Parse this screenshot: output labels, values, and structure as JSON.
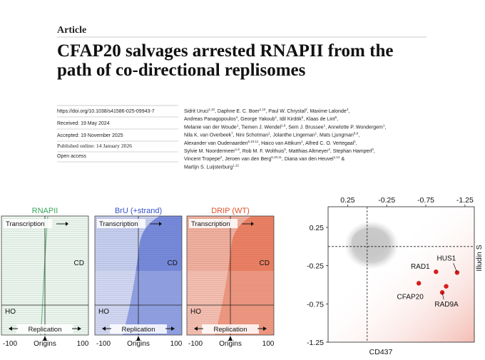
{
  "header": {
    "label": "Article",
    "title_lines": [
      "CFAP20 salvages arrested RNAPII from the",
      "path of co-directional replisomes"
    ]
  },
  "details": [
    "https://doi.org/10.1038/s41586-025-09943-7",
    "Received: 19 May 2024",
    "Accepted: 19 November 2025",
    "Published online: 14 January 2026",
    "Open access"
  ],
  "authors": [
    [
      "Sidrit Uruci",
      "1,10",
      ", Daphne E. C. Boer",
      "1,10",
      ", Paul W. Chrystal",
      "2",
      ", Maxime Lalonde",
      "3",
      ","
    ],
    [
      "Andreas Panagopoulos",
      "4",
      ", George Yakoub",
      "1",
      ", Idil Kirdök",
      "5",
      ", Klaas de Lint",
      "5",
      ","
    ],
    [
      "Melanie van der Woude",
      "1",
      ", Tiemen J. Wendel",
      "1,6",
      ", Sem J. Brussee",
      "1",
      ", Annelotte P. Wondergem",
      "1",
      ","
    ],
    [
      "Nila K. van Overbeek",
      "7",
      ", Nini Schotman",
      "1",
      ", Jolanthe Lingeman",
      "1",
      ", Mats Ljungman",
      "8,9",
      ","
    ],
    [
      "Alexander van Oudenaarden",
      "6,10,11",
      ", Haico van Attikum",
      "1",
      ", Alfred C. O. Vertegaal",
      "1",
      ","
    ],
    [
      "Sylvie M. Noordermeer",
      "1,6",
      ", Rob M. F. Wolthuis",
      "5",
      ", Matthias Altmeyer",
      "4",
      ", Stephan Hamperl",
      "3",
      ","
    ],
    [
      "Vincent Tropepe",
      "2",
      ", Jeroen van den Berg",
      "6,10,11",
      ", Diana van den Heuvel",
      "1,12",
      " &"
    ],
    [
      "Martijn S. Luijsterburg",
      "1,12"
    ]
  ],
  "heatmaps": {
    "panels": [
      {
        "title": "RNAPII",
        "color": "#3aa65a"
      },
      {
        "title": "BrU (+strand)",
        "color": "#3552c8"
      },
      {
        "title": "DRIP (WT)",
        "color": "#e2502a"
      }
    ],
    "labels": {
      "top": "Transcription",
      "right": "CD",
      "left": "HO",
      "bottom": "Replication",
      "x_left": "-100",
      "x_center": "Origins",
      "x_right": "100"
    }
  },
  "chart_data": {
    "type": "scatter",
    "xlabel": "CD437",
    "ylabel": "Illudin S",
    "xlim": [
      0.5,
      -1.37
    ],
    "ylim": [
      -1.25,
      0.52
    ],
    "xticks": [
      0.25,
      -0.25,
      -0.75,
      -1.25
    ],
    "yticks": [
      0.25,
      -0.25,
      -0.75,
      -1.25
    ],
    "reference_lines": {
      "x": 0,
      "y": 0
    },
    "x": [
      -0.88,
      -1.15,
      -0.66,
      -0.96,
      -1.01
    ],
    "y": [
      -0.33,
      -0.34,
      -0.48,
      -0.6,
      -0.52
    ],
    "labels": [
      "RAD1",
      "HUS1",
      "CFAP20",
      "RAD9A",
      null
    ],
    "color": "#d71d1d"
  }
}
